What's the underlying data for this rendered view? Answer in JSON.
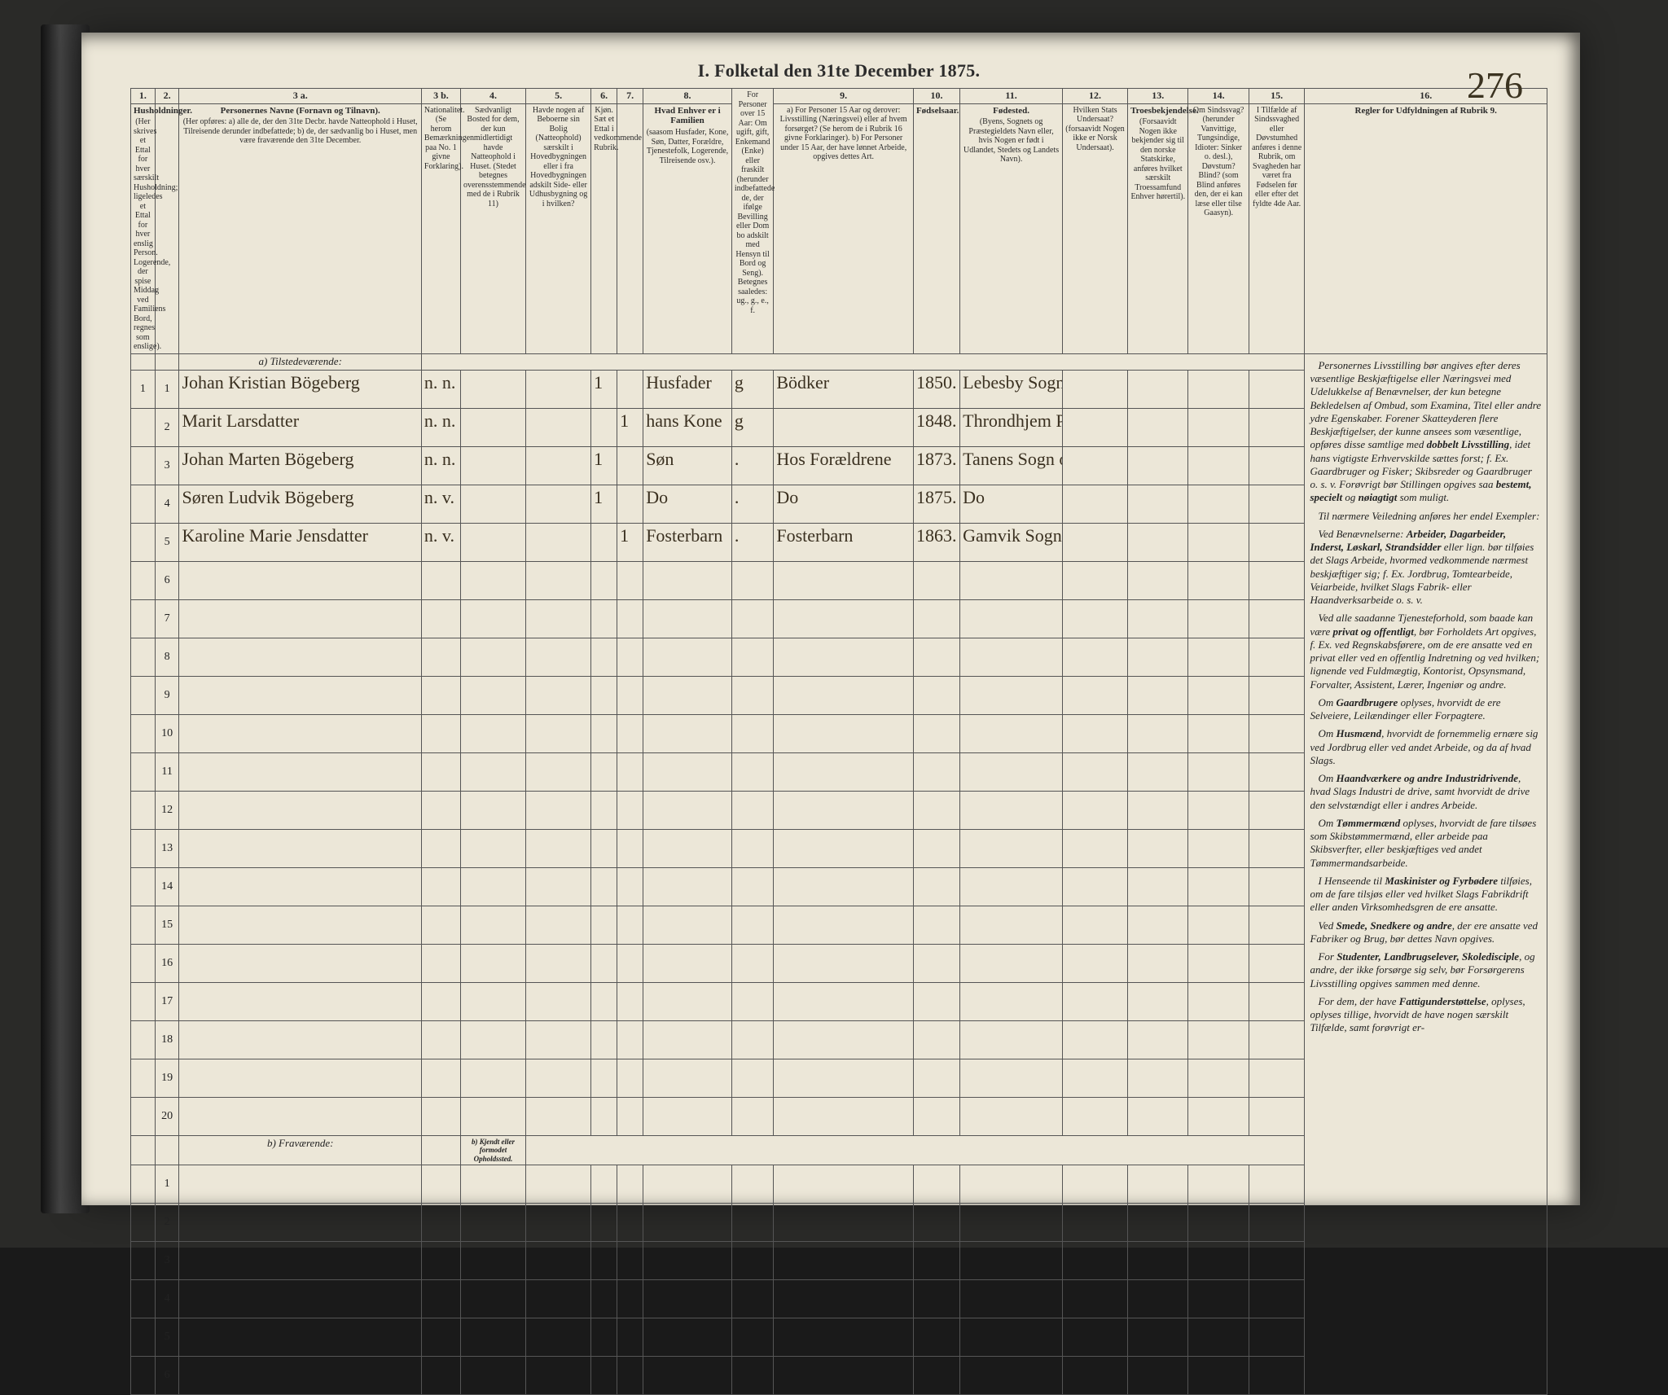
{
  "page_number": "276",
  "title": "I.  Folketal den 31te December 1875.",
  "columns": [
    {
      "no": "1.",
      "head": "Husholdninger.",
      "sub": "(Her skrives et Ettal for hver særskilt Husholdning; ligeledes et Ettal for hver enslig Person. Logerende, der spise Middag ved Familiens Bord, regnes som enslige)."
    },
    {
      "no": "2.",
      "head": "",
      "sub": ""
    },
    {
      "no": "3 a.",
      "head": "Personernes Navne (Fornavn og Tilnavn).",
      "sub": "(Her opføres: a) alle de, der den 31te Decbr. havde Natteophold i Huset, Tilreisende derunder indbefattede; b) de, der sædvanlig bo i Huset, men være fraværende den 31te December."
    },
    {
      "no": "3 b.",
      "head": "",
      "sub": "Nationalitet. (Se herom Bemærkningen paa No. 1 givne Forklaring)."
    },
    {
      "no": "4.",
      "head": "",
      "sub": "Sædvanligt Bosted for dem, der kun midlertidigt havde Natteophold i Huset. (Stedet betegnes overensstemmende med de i Rubrik 11)"
    },
    {
      "no": "5.",
      "head": "",
      "sub": "Havde nogen af Beboerne sin Bolig (Natteophold) særskilt i Hovedbygningen eller i fra Hovedbygningen adskilt Side- eller Udhusbygning og i hvilken?"
    },
    {
      "no": "6.",
      "head": "",
      "sub": "Kjøn. Sæt et Ettal i vedkommende Rubrik."
    },
    {
      "no": "7.",
      "head": "",
      "sub": ""
    },
    {
      "no": "8.",
      "head": "Hvad Enhver er i Familien",
      "sub": "(saasom Husfader, Kone, Søn, Datter, Forældre, Tjenestefolk, Logerende, Tilreisende osv.)."
    },
    {
      "no": "",
      "head": "",
      "sub": "For Personer over 15 Aar: Om ugift, gift, Enkemand (Enke) eller fraskilt (herunder indbefattede de, der ifølge Bevilling eller Dom bo adskilt med Hensyn til Bord og Seng). Betegnes saaledes: ug., g., e., f."
    },
    {
      "no": "9.",
      "head": "",
      "sub": "a) For Personer 15 Aar og derover: Livsstilling (Næringsvei) eller af hvem forsørget? (Se herom de i Rubrik 16 givne Forklaringer). b) For Personer under 15 Aar, der have lønnet Arbeide, opgives dettes Art."
    },
    {
      "no": "10.",
      "head": "Fødselsaar.",
      "sub": ""
    },
    {
      "no": "11.",
      "head": "Fødested.",
      "sub": "(Byens, Sognets og Præstegieldets Navn eller, hvis Nogen er født i Udlandet, Stedets og Landets Navn)."
    },
    {
      "no": "12.",
      "head": "",
      "sub": "Hvilken Stats Undersaat? (forsaavidt Nogen ikke er Norsk Undersaat)."
    },
    {
      "no": "13.",
      "head": "Troesbekjendelse.",
      "sub": "(Forsaavidt Nogen ikke bekjender sig til den norske Statskirke, anføres hvilket særskilt Troessamfund Enhver hørertil)."
    },
    {
      "no": "14.",
      "head": "",
      "sub": "Om Sindssvag? (herunder Vanvittige, Tungsindige, Idioter: Sinker o. desl.), Døvstum? Blind? (som Blind anføres den, der ei kan læse eller tilse Gaasyn)."
    },
    {
      "no": "15.",
      "head": "",
      "sub": "I Tilfælde af Sindssvaghed eller Døvstumhed anføres i denne Rubrik, om Svagheden har været fra Fødselen før eller efter det fyldte 4de Aar."
    },
    {
      "no": "16.",
      "head": "Regler for Udfyldningen af Rubrik 9.",
      "sub": ""
    }
  ],
  "section_a": "a) Tilstedeværende:",
  "section_b": "b) Fraværende:",
  "section_b_note": "b) Kjendt eller formodet Opholdssted.",
  "rows_a": [
    {
      "h": "1",
      "n": "1",
      "name": "Johan Kristian Bögeberg",
      "nat": "n. n.",
      "m": "1",
      "fam": "Husfader",
      "civ": "g",
      "occ": "Bödker",
      "yr": "1850.",
      "place": "Lebesby Sogn og Prgj."
    },
    {
      "h": "",
      "n": "2",
      "name": "Marit Larsdatter",
      "nat": "n. n.",
      "m": "",
      "k": "1",
      "fam": "hans Kone",
      "civ": "g",
      "occ": "",
      "yr": "1848.",
      "place": "Throndhjem Prgjld"
    },
    {
      "h": "",
      "n": "3",
      "name": "Johan Marten Bögeberg",
      "nat": "n. n.",
      "m": "1",
      "fam": "Søn",
      "civ": ".",
      "occ": "Hos Forældrene",
      "yr": "1873.",
      "place": "Tanens Sogn og Prgj."
    },
    {
      "h": "",
      "n": "4",
      "name": "Søren Ludvik Bögeberg",
      "nat": "n. v.",
      "m": "1",
      "fam": "Do",
      "civ": ".",
      "occ": "Do",
      "yr": "1875.",
      "place": "Do"
    },
    {
      "h": "",
      "n": "5",
      "name": "Karoline Marie Jensdatter",
      "nat": "n. v.",
      "m": "",
      "k": "1",
      "fam": "Fosterbarn",
      "civ": ".",
      "occ": "Fosterbarn",
      "yr": "1863.",
      "place": "Gamvik Sogn Tanens Prgj."
    }
  ],
  "blank_a_count": 15,
  "blank_b_count": 6,
  "rules_title": "",
  "rules_paragraphs": [
    "Personernes Livsstilling bør angives efter deres væsentlige Beskjæftigelse eller Næringsvei med Udelukkelse af Benævnelser, der kun betegne Bekledelsen af Ombud, som Examina, Titel eller andre ydre Egenskaber. Forener Skatteyderen flere Beskjæftigelser, der kunne ansees som væsentlige, opføres disse samtlige med <b>dobbelt Livsstilling</b>, idet hans vigtigste Erhvervskilde sættes forst; f. Ex. Gaardbruger og Fisker; Skibsreder og Gaardbruger o. s. v. Forøvrigt bør Stillingen opgives saa <b>bestemt, specielt</b> og <b>nøiagtigt</b> som muligt.",
    "Til nærmere Veiledning anføres her endel Exempler:",
    "Ved Benævnelserne: <b>Arbeider, Dagarbeider, Inderst, Løskarl, Strandsidder</b> eller lign. bør tilføies det Slags Arbeide, hvormed vedkommende nærmest beskjæftiger sig; f. Ex. Jordbrug, Tomtearbeide, Veiarbeide, hvilket Slags Fabrik- eller Haandverksarbeide o. s. v.",
    "Ved alle saadanne Tjenesteforhold, som baade kan være <b>privat og offentligt</b>, bør Forholdets Art opgives, f. Ex. ved Regnskabsførere, om de ere ansatte ved en privat eller ved en offentlig Indretning og ved hvilken; lignende ved Fuldmægtig, Kontorist, Opsynsmand, Forvalter, Assistent, Lærer, Ingeniør og andre.",
    "Om <b>Gaardbrugere</b> oplyses, hvorvidt de ere Selveiere, Leilændinger eller Forpagtere.",
    "Om <b>Husmænd</b>, hvorvidt de fornemmelig ernære sig ved Jordbrug eller ved andet Arbeide, og da af hvad Slags.",
    "Om <b>Haandværkere og andre Industridrivende</b>, hvad Slags Industri de drive, samt hvorvidt de drive den selvstændigt eller i andres Arbeide.",
    "Om <b>Tømmermænd</b> oplyses, hvorvidt de fare tilsøes som Skibstømmermænd, eller arbeide paa Skibsverfter, eller beskjæftiges ved andet Tømmermandsarbeide.",
    "I Henseende til <b>Maskinister og Fyrbødere</b> tilføies, om de fare tilsjøs eller ved hvilket Slags Fabrikdrift eller anden Virksomhedsgren de ere ansatte.",
    "Ved <b>Smede, Snedkere og andre</b>, der ere ansatte ved Fabriker og Brug, bør dettes Navn opgives.",
    "For <b>Studenter, Landbrugselever, Skoledisciple</b>, og andre, der ikke forsørge sig selv, bør Forsørgerens Livsstilling opgives sammen med denne.",
    "For dem, der have <b>Fattigunderstøttelse</b>, oplyses, oplyses tillige, hvorvidt de have nogen særskilt Tilfælde, samt forøvrigt er-"
  ]
}
